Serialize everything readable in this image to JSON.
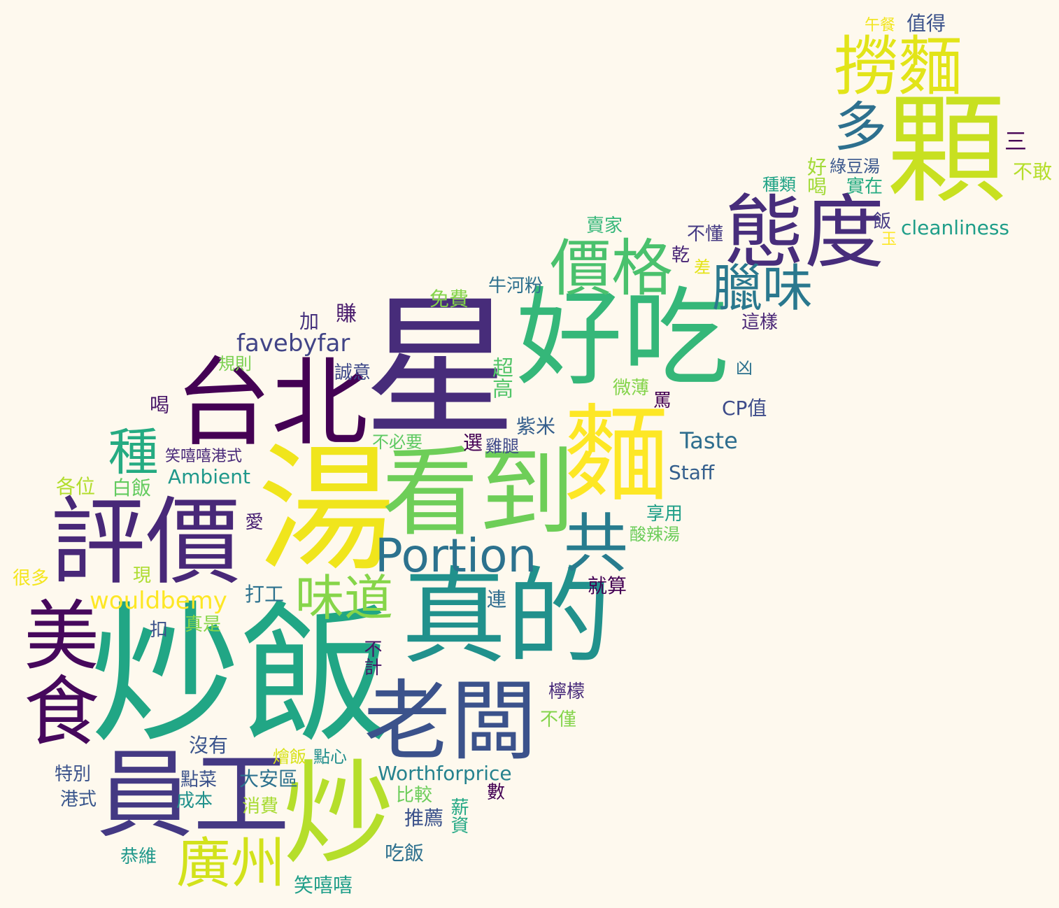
{
  "palette": {
    "background": "#fef9ee",
    "dark_purple": "#440154",
    "indigo": "#472c7a",
    "slate_blue": "#3b518b",
    "steel_blue": "#2c718e",
    "teal": "#21908d",
    "green_teal": "#27ad81",
    "green": "#5cc863",
    "lime": "#aadc32",
    "yellow": "#fde725"
  },
  "words": [
    {
      "text": "炒飯",
      "color": "#21a685",
      "orientation": "horizontal"
    },
    {
      "text": "星",
      "color": "#472c7a",
      "orientation": "horizontal"
    },
    {
      "text": "湯",
      "color": "#f0e51c",
      "orientation": "horizontal"
    },
    {
      "text": "好吃",
      "color": "#35b779",
      "orientation": "horizontal"
    },
    {
      "text": "顆",
      "color": "#c8e020",
      "orientation": "horizontal"
    },
    {
      "text": "台北",
      "color": "#440154",
      "orientation": "horizontal"
    },
    {
      "text": "真的",
      "color": "#21918c",
      "orientation": "horizontal"
    },
    {
      "text": "看到",
      "color": "#6ece58",
      "orientation": "horizontal"
    },
    {
      "text": "評價",
      "color": "#482878",
      "orientation": "horizontal"
    },
    {
      "text": "麵",
      "color": "#fde725",
      "orientation": "horizontal"
    },
    {
      "text": "員工",
      "color": "#443983",
      "orientation": "horizontal"
    },
    {
      "text": "炒",
      "color": "#b5de2b",
      "orientation": "horizontal"
    },
    {
      "text": "老闆",
      "color": "#3b528b",
      "orientation": "horizontal"
    },
    {
      "text": "態度",
      "color": "#472d7b",
      "orientation": "horizontal"
    },
    {
      "text": "美食",
      "color": "#46085c",
      "orientation": "vertical"
    },
    {
      "text": "撈麵",
      "color": "#e2e418",
      "orientation": "horizontal"
    },
    {
      "text": "價格",
      "color": "#4ac16d",
      "orientation": "horizontal"
    },
    {
      "text": "Portion",
      "color": "#2c728e",
      "orientation": "horizontal"
    },
    {
      "text": "共",
      "color": "#287c8e",
      "orientation": "horizontal"
    },
    {
      "text": "廣州",
      "color": "#d2e21b",
      "orientation": "horizontal"
    },
    {
      "text": "味道",
      "color": "#86d549",
      "orientation": "horizontal"
    },
    {
      "text": "臘味",
      "color": "#2a788e",
      "orientation": "horizontal"
    },
    {
      "text": "多",
      "color": "#2d708e",
      "orientation": "horizontal"
    },
    {
      "text": "種",
      "color": "#25ab82",
      "orientation": "vertical"
    },
    {
      "text": "favebyfar",
      "color": "#414487",
      "orientation": "horizontal"
    },
    {
      "text": "wouldbemy",
      "color": "#fde725",
      "orientation": "horizontal"
    },
    {
      "text": "Worthforprice",
      "color": "#26828e",
      "orientation": "horizontal"
    },
    {
      "text": "cleanliness",
      "color": "#1f9e89",
      "orientation": "horizontal"
    },
    {
      "text": "Taste",
      "color": "#2e6e8e",
      "orientation": "horizontal"
    },
    {
      "text": "Ambient",
      "color": "#1f988b",
      "orientation": "horizontal"
    },
    {
      "text": "Staff",
      "color": "#355f8d",
      "orientation": "horizontal"
    },
    {
      "text": "CP值",
      "color": "#3e4c8a",
      "orientation": "horizontal"
    },
    {
      "text": "午餐",
      "color": "#f1e51d",
      "orientation": "horizontal"
    },
    {
      "text": "值得",
      "color": "#3b528b",
      "orientation": "horizontal"
    },
    {
      "text": "三",
      "color": "#440154",
      "orientation": "horizontal"
    },
    {
      "text": "好喝",
      "color": "#a2da37",
      "orientation": "vertical"
    },
    {
      "text": "綠豆湯",
      "color": "#39568c",
      "orientation": "horizontal"
    },
    {
      "text": "種類",
      "color": "#20a386",
      "orientation": "horizontal"
    },
    {
      "text": "實在",
      "color": "#25ab82",
      "orientation": "horizontal"
    },
    {
      "text": "不敢",
      "color": "#b5de2b",
      "orientation": "horizontal"
    },
    {
      "text": "賣家",
      "color": "#35b779",
      "orientation": "horizontal"
    },
    {
      "text": "不懂",
      "color": "#443983",
      "orientation": "horizontal"
    },
    {
      "text": "飯",
      "color": "#443983",
      "orientation": "horizontal"
    },
    {
      "text": "玉",
      "color": "#fde725",
      "orientation": "horizontal"
    },
    {
      "text": "乾",
      "color": "#482576",
      "orientation": "horizontal"
    },
    {
      "text": "差",
      "color": "#e5e419",
      "orientation": "horizontal"
    },
    {
      "text": "牛河粉",
      "color": "#2d708e",
      "orientation": "horizontal"
    },
    {
      "text": "免費",
      "color": "#84d44b",
      "orientation": "horizontal"
    },
    {
      "text": "加",
      "color": "#46327e",
      "orientation": "horizontal"
    },
    {
      "text": "賺",
      "color": "#481a6c",
      "orientation": "vertical"
    },
    {
      "text": "這樣",
      "color": "#482475",
      "orientation": "horizontal"
    },
    {
      "text": "規則",
      "color": "#7ad151",
      "orientation": "horizontal"
    },
    {
      "text": "誠意",
      "color": "#3e4989",
      "orientation": "horizontal"
    },
    {
      "text": "超高",
      "color": "#52c569",
      "orientation": "vertical"
    },
    {
      "text": "凶",
      "color": "#2c718e",
      "orientation": "horizontal"
    },
    {
      "text": "微薄",
      "color": "#84d44b",
      "orientation": "horizontal"
    },
    {
      "text": "罵",
      "color": "#440154",
      "orientation": "horizontal"
    },
    {
      "text": "喝",
      "color": "#481668",
      "orientation": "vertical"
    },
    {
      "text": "紫米",
      "color": "#355f8d",
      "orientation": "horizontal"
    },
    {
      "text": "不必要",
      "color": "#5ec962",
      "orientation": "horizontal"
    },
    {
      "text": "選",
      "color": "#440154",
      "orientation": "vertical"
    },
    {
      "text": "雞腿",
      "color": "#3e4989",
      "orientation": "horizontal"
    },
    {
      "text": "笑嘻嘻港式",
      "color": "#482979",
      "orientation": "horizontal"
    },
    {
      "text": "各位",
      "color": "#b2dd2d",
      "orientation": "horizontal"
    },
    {
      "text": "白飯",
      "color": "#63cb5f",
      "orientation": "horizontal"
    },
    {
      "text": "享用",
      "color": "#1f9f88",
      "orientation": "horizontal"
    },
    {
      "text": "愛",
      "color": "#482173",
      "orientation": "vertical"
    },
    {
      "text": "酸辣湯",
      "color": "#6ccd5a",
      "orientation": "horizontal"
    },
    {
      "text": "很多",
      "color": "#f4e61e",
      "orientation": "horizontal"
    },
    {
      "text": "現",
      "color": "#addc30",
      "orientation": "horizontal"
    },
    {
      "text": "就算",
      "color": "#440154",
      "orientation": "horizontal"
    },
    {
      "text": "打工",
      "color": "#2c718e",
      "orientation": "horizontal"
    },
    {
      "text": "連",
      "color": "#2f6c8e",
      "orientation": "vertical"
    },
    {
      "text": "扣",
      "color": "#3b528b",
      "orientation": "horizontal"
    },
    {
      "text": "真是",
      "color": "#86d549",
      "orientation": "horizontal"
    },
    {
      "text": "不計",
      "color": "#471365",
      "orientation": "vertical"
    },
    {
      "text": "檸檬",
      "color": "#472a7a",
      "orientation": "horizontal"
    },
    {
      "text": "不僅",
      "color": "#84d44b",
      "orientation": "horizontal"
    },
    {
      "text": "沒有",
      "color": "#3a548c",
      "orientation": "horizontal"
    },
    {
      "text": "燴飯",
      "color": "#d8e219",
      "orientation": "horizontal"
    },
    {
      "text": "點心",
      "color": "#218e8d",
      "orientation": "horizontal"
    },
    {
      "text": "特別",
      "color": "#3b528b",
      "orientation": "horizontal"
    },
    {
      "text": "點菜",
      "color": "#3b528b",
      "orientation": "horizontal"
    },
    {
      "text": "大安區",
      "color": "#2c718e",
      "orientation": "horizontal"
    },
    {
      "text": "港式",
      "color": "#39568c",
      "orientation": "horizontal"
    },
    {
      "text": "成本",
      "color": "#21918c",
      "orientation": "horizontal"
    },
    {
      "text": "消費",
      "color": "#a8db34",
      "orientation": "horizontal"
    },
    {
      "text": "比較",
      "color": "#6ccd5a",
      "orientation": "horizontal"
    },
    {
      "text": "數",
      "color": "#440154",
      "orientation": "horizontal"
    },
    {
      "text": "推薦",
      "color": "#3b528b",
      "orientation": "horizontal"
    },
    {
      "text": "薪資",
      "color": "#22a884",
      "orientation": "vertical"
    },
    {
      "text": "恭維",
      "color": "#1f988b",
      "orientation": "horizontal"
    },
    {
      "text": "吃飯",
      "color": "#2d708e",
      "orientation": "horizontal"
    },
    {
      "text": "笑嘻嘻",
      "color": "#1f9e89",
      "orientation": "horizontal"
    }
  ]
}
